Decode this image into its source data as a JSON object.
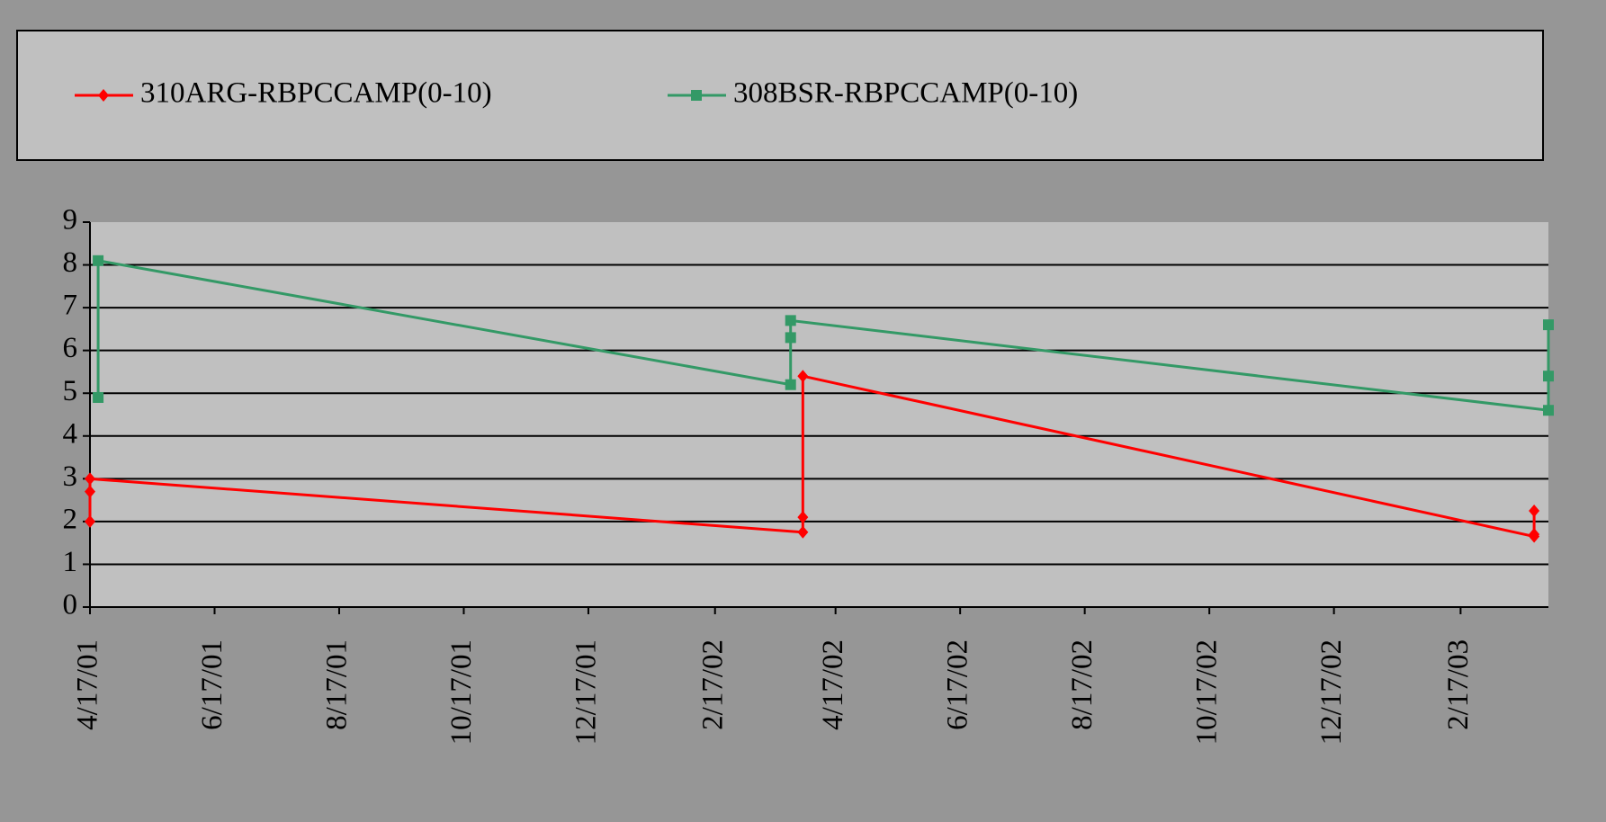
{
  "chart_data": {
    "type": "line",
    "x": [
      "4/17/01",
      "4/17/01",
      "4/17/01",
      "4/1/02",
      "4/1/02",
      "4/1/02",
      "3/25/03",
      "3/25/03",
      "3/25/03"
    ],
    "series": [
      {
        "name": "310ARG-RBPCCAMP(0-10)",
        "color": "#ff0000",
        "marker": "diamond",
        "x": [
          "4/17/01",
          "4/17/01",
          "4/17/01",
          "4/1/02",
          "4/1/02",
          "4/1/02",
          "3/25/03",
          "3/25/03",
          "3/25/03"
        ],
        "values": [
          2.0,
          2.7,
          3.0,
          1.75,
          2.1,
          5.4,
          1.65,
          1.7,
          2.25
        ]
      },
      {
        "name": "308BSR-RBPCCAMP(0-10)",
        "color": "#339966",
        "marker": "square",
        "x": [
          "4/21/01",
          "4/21/01",
          "3/26/02",
          "3/26/02",
          "3/26/02",
          "4/1/03",
          "4/1/03",
          "4/1/03"
        ],
        "values": [
          4.9,
          8.1,
          5.2,
          6.3,
          6.7,
          4.6,
          5.4,
          6.6
        ]
      }
    ],
    "xlim": [
      "4/17/01",
      "4/1/03"
    ],
    "xticks": [
      "4/17/01",
      "6/17/01",
      "8/17/01",
      "10/17/01",
      "12/17/01",
      "2/17/02",
      "4/17/02",
      "6/17/02",
      "8/17/02",
      "10/17/02",
      "12/17/02",
      "2/17/03"
    ],
    "ylim": [
      0,
      9
    ],
    "yticks": [
      0,
      1,
      2,
      3,
      4,
      5,
      6,
      7,
      8,
      9
    ],
    "grid": true,
    "legend": "top"
  }
}
